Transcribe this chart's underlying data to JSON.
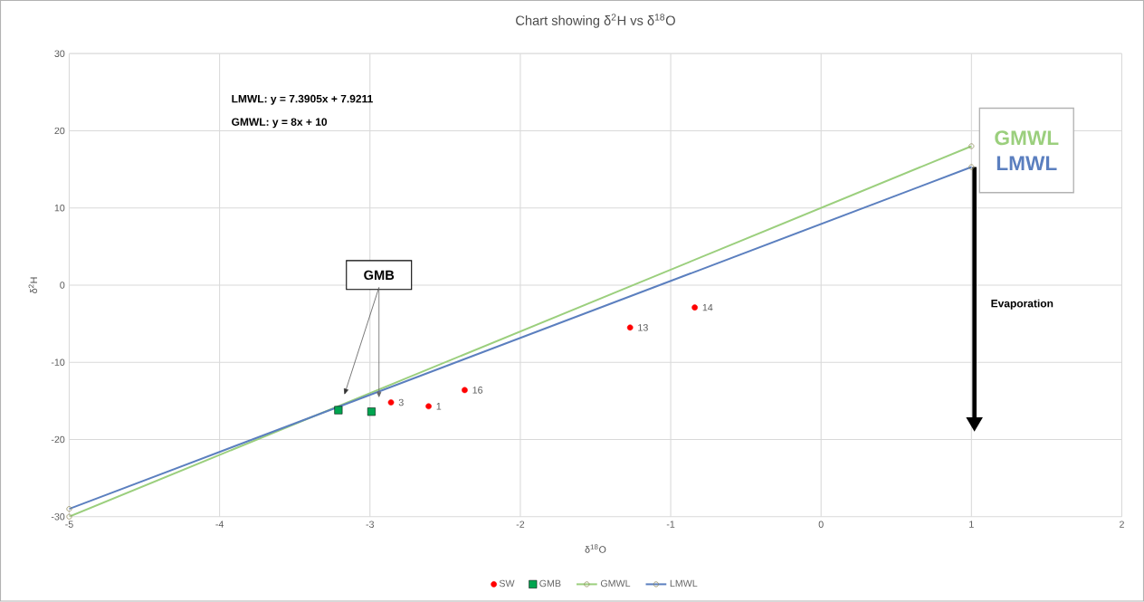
{
  "chart_data": {
    "type": "scatter",
    "title": "Chart showing δ$^{2}$H vs δ$^{18}$O",
    "xlabel": "δ$^{18}$O",
    "ylabel": "δ$^{2}$H",
    "xlim": [
      -5,
      2
    ],
    "xticks": [
      -5,
      -4,
      -3,
      -2,
      -1,
      0,
      1,
      2
    ],
    "ylim": [
      -30,
      30
    ],
    "yticks": [
      -30,
      -20,
      -10,
      0,
      10,
      20,
      30
    ],
    "grid": true,
    "legend": "bottom",
    "annotations": [
      "LMWL: y = 7.3905x + 7.9211",
      "GMWL: y = 8x + 10",
      "GMB",
      "Evaporation",
      {
        "text": "3",
        "x": -2.86,
        "y": -15.2
      },
      {
        "text": "1",
        "x": -2.61,
        "y": -15.7
      },
      {
        "text": "16",
        "x": -2.37,
        "y": -13.6
      },
      {
        "text": "13",
        "x": -1.27,
        "y": -5.5
      },
      {
        "text": "14",
        "x": -0.84,
        "y": -2.9
      }
    ],
    "series": [
      {
        "name": "SW",
        "color": "#ff0000",
        "marker": "circle",
        "x": [
          -2.86,
          -2.61,
          -2.37,
          -1.27,
          -0.84
        ],
        "values": [
          -15.2,
          -15.7,
          -13.6,
          -5.5,
          -2.9
        ]
      },
      {
        "name": "GMB",
        "color": "#00a550",
        "marker": "square",
        "x": [
          -3.21,
          -2.99
        ],
        "values": [
          -16.2,
          -16.4
        ]
      },
      {
        "name": "GMWL",
        "type": "line",
        "color": "#9bcf7d",
        "marker": "circle",
        "x": [
          -5,
          1
        ],
        "values": [
          -30,
          18
        ]
      },
      {
        "name": "LMWL",
        "type": "line",
        "color": "#5b7fbf",
        "marker": "circle",
        "x": [
          -5,
          1
        ],
        "values": [
          -29.0,
          15.3
        ]
      }
    ]
  }
}
